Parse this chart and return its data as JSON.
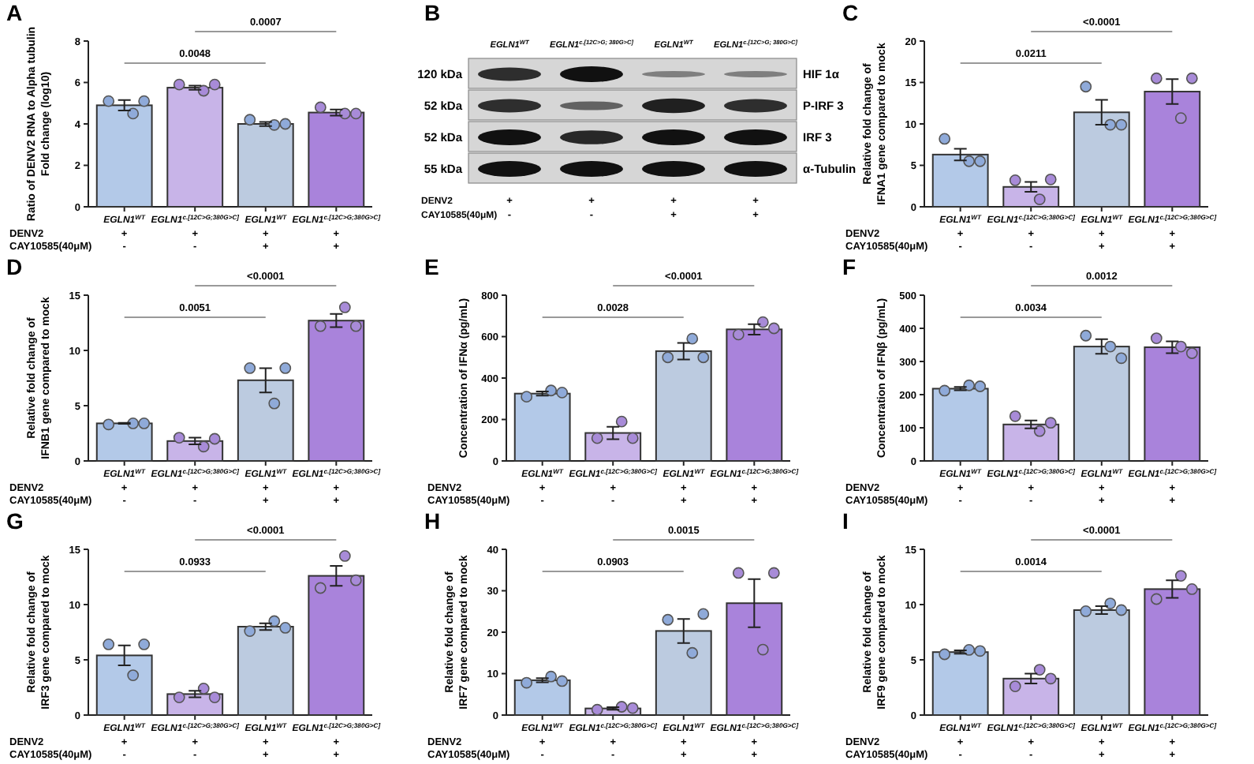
{
  "chart_data": [
    {
      "type": "bar",
      "title": "A",
      "ylabel": "Ratio of DENV2 RNA to Alpha tubulin\nFold change (log10)",
      "categories": [
        "EGLN1$^{WT}$",
        "EGLN1$^{c.[12C>G;380G>C]}$",
        "EGLN1$^{WT}$",
        "EGLN1$^{c.[12C>G;380G>C]}$"
      ],
      "ylim": [
        0,
        8
      ],
      "yticks": [
        0,
        2,
        4,
        6,
        8
      ],
      "series": [
        {
          "type": "bar",
          "colors": [
            "#b3c9e8",
            "#c8b4e8",
            "#bccbe0",
            "#a983db"
          ],
          "values": [
            4.9,
            5.75,
            4.0,
            4.55
          ],
          "errors": [
            0.25,
            0.1,
            0.1,
            0.15
          ]
        },
        {
          "type": "scatter",
          "colors": [
            "#8faad9",
            "#a88bd8",
            "#8faad9",
            "#a88bd8"
          ],
          "values": [
            5.1,
            5.9,
            4.2,
            4.8
          ]
        },
        {
          "type": "scatter",
          "colors": [
            "#8faad9",
            "#a88bd8",
            "#8faad9",
            "#a88bd8"
          ],
          "values": [
            4.5,
            5.6,
            3.95,
            4.5
          ]
        },
        {
          "type": "scatter",
          "colors": [
            "#8faad9",
            "#a88bd8",
            "#8faad9",
            "#a88bd8"
          ],
          "values": [
            5.1,
            5.9,
            4.0,
            4.5
          ]
        }
      ],
      "annotations": [
        "0.0048",
        "0.0007",
        "DENV2",
        "+",
        "+",
        "+",
        "+",
        "CAY10585(40μM)",
        "-",
        "-",
        "+",
        "+"
      ]
    },
    {
      "type": "other",
      "title": "B",
      "categories": [
        "EGLN1$^{WT}$",
        "EGLN1$^{c.[12C>G; 380G>C]}$",
        "EGLN1$^{WT}$",
        "EGLN1$^{c.[12C>G; 380G>C]}$"
      ],
      "annotations": [
        "120 kDa",
        "52 kDa",
        "52 kDa",
        "55 kDa",
        "HIF 1α",
        "P-IRF 3",
        "IRF 3",
        "α-Tubulin",
        "DENV2",
        "+",
        "+",
        "+",
        "+",
        "CAY10585(40μM)",
        "-",
        "-",
        "+",
        "+"
      ]
    },
    {
      "type": "bar",
      "title": "C",
      "ylabel": "Relative fold change of\nIFNA1 gene compared to mock",
      "categories": [
        "EGLN1$^{WT}$",
        "EGLN1$^{c.[12C>G;380G>C]}$",
        "EGLN1$^{WT}$",
        "EGLN1$^{c.[12C>G;380G>C]}$"
      ],
      "ylim": [
        0,
        20
      ],
      "yticks": [
        0,
        5,
        10,
        15,
        20
      ],
      "series": [
        {
          "type": "bar",
          "colors": [
            "#b3c9e8",
            "#c8b4e8",
            "#bccbe0",
            "#a983db"
          ],
          "values": [
            6.3,
            2.4,
            11.4,
            13.9
          ],
          "errors": [
            0.7,
            0.6,
            1.5,
            1.5
          ]
        },
        {
          "type": "scatter",
          "colors": [
            "#8faad9",
            "#a88bd8",
            "#8faad9",
            "#a88bd8"
          ],
          "values": [
            8.2,
            3.2,
            14.5,
            15.5
          ]
        },
        {
          "type": "scatter",
          "colors": [
            "#8faad9",
            "#a88bd8",
            "#8faad9",
            "#a88bd8"
          ],
          "values": [
            5.5,
            0.9,
            9.9,
            10.7
          ]
        },
        {
          "type": "scatter",
          "colors": [
            "#8faad9",
            "#a88bd8",
            "#8faad9",
            "#a88bd8"
          ],
          "values": [
            5.5,
            3.3,
            9.9,
            15.5
          ]
        }
      ],
      "annotations": [
        "0.0211",
        "<0.0001",
        "DENV2",
        "+",
        "+",
        "+",
        "+",
        "CAY10585(40μM)",
        "-",
        "-",
        "+",
        "+"
      ]
    },
    {
      "type": "bar",
      "title": "D",
      "ylabel": "Relative fold change of\nIFNB1 gene compared to mock",
      "categories": [
        "EGLN1$^{WT}$",
        "EGLN1$^{c.[12C>G;380G>C]}$",
        "EGLN1$^{WT}$",
        "EGLN1$^{c.[12C>G;380G>C]}$"
      ],
      "ylim": [
        0,
        15
      ],
      "yticks": [
        0,
        5,
        10,
        15
      ],
      "series": [
        {
          "type": "bar",
          "colors": [
            "#b3c9e8",
            "#c8b4e8",
            "#bccbe0",
            "#a983db"
          ],
          "values": [
            3.4,
            1.8,
            7.3,
            12.7
          ],
          "errors": [
            0.05,
            0.3,
            1.1,
            0.6
          ]
        },
        {
          "type": "scatter",
          "colors": [
            "#8faad9",
            "#a88bd8",
            "#8faad9",
            "#a88bd8"
          ],
          "values": [
            3.3,
            2.1,
            8.4,
            12.2
          ]
        },
        {
          "type": "scatter",
          "colors": [
            "#8faad9",
            "#a88bd8",
            "#8faad9",
            "#a88bd8"
          ],
          "values": [
            3.4,
            1.3,
            5.2,
            13.9
          ]
        },
        {
          "type": "scatter",
          "colors": [
            "#8faad9",
            "#a88bd8",
            "#8faad9",
            "#a88bd8"
          ],
          "values": [
            3.4,
            2.0,
            8.4,
            12.2
          ]
        }
      ],
      "annotations": [
        "0.0051",
        "<0.0001",
        "DENV2",
        "+",
        "+",
        "+",
        "+",
        "CAY10585(40μM)",
        "-",
        "-",
        "+",
        "+"
      ]
    },
    {
      "type": "bar",
      "title": "E",
      "ylabel": "Concentration of IFNα (pg/mL)",
      "categories": [
        "EGLN1$^{WT}$",
        "EGLN1$^{c.[12C>G;380G>C]}$",
        "EGLN1$^{WT}$",
        "EGLN1$^{c.[12C>G;380G>C]}$"
      ],
      "ylim": [
        0,
        800
      ],
      "yticks": [
        0,
        200,
        400,
        600,
        800
      ],
      "series": [
        {
          "type": "bar",
          "colors": [
            "#b3c9e8",
            "#c8b4e8",
            "#bccbe0",
            "#a983db"
          ],
          "values": [
            325,
            135,
            530,
            635
          ],
          "errors": [
            10,
            30,
            40,
            25
          ]
        },
        {
          "type": "scatter",
          "colors": [
            "#8faad9",
            "#a88bd8",
            "#8faad9",
            "#a88bd8"
          ],
          "values": [
            310,
            110,
            500,
            610
          ]
        },
        {
          "type": "scatter",
          "colors": [
            "#8faad9",
            "#a88bd8",
            "#8faad9",
            "#a88bd8"
          ],
          "values": [
            340,
            190,
            590,
            670
          ]
        },
        {
          "type": "scatter",
          "colors": [
            "#8faad9",
            "#a88bd8",
            "#8faad9",
            "#a88bd8"
          ],
          "values": [
            330,
            110,
            500,
            640
          ]
        }
      ],
      "annotations": [
        "0.0028",
        "<0.0001",
        "DENV2",
        "+",
        "+",
        "+",
        "+",
        "CAY10585(40μM)",
        "-",
        "-",
        "+",
        "+"
      ]
    },
    {
      "type": "bar",
      "title": "F",
      "ylabel": "Concentration of IFNβ (pg/mL)",
      "categories": [
        "EGLN1$^{WT}$",
        "EGLN1$^{c.[12C>G;380G>C]}$",
        "EGLN1$^{WT}$",
        "EGLN1$^{c.[12C>G;380G>C]}$"
      ],
      "ylim": [
        0,
        500
      ],
      "yticks": [
        0,
        100,
        200,
        300,
        400,
        500
      ],
      "series": [
        {
          "type": "bar",
          "colors": [
            "#b3c9e8",
            "#c8b4e8",
            "#bccbe0",
            "#a983db"
          ],
          "values": [
            218,
            110,
            345,
            343
          ],
          "errors": [
            5,
            12,
            22,
            18
          ]
        },
        {
          "type": "scatter",
          "colors": [
            "#8faad9",
            "#a88bd8",
            "#8faad9",
            "#a88bd8"
          ],
          "values": [
            212,
            135,
            378,
            370
          ]
        },
        {
          "type": "scatter",
          "colors": [
            "#8faad9",
            "#a88bd8",
            "#8faad9",
            "#a88bd8"
          ],
          "values": [
            228,
            90,
            345,
            345
          ]
        },
        {
          "type": "scatter",
          "colors": [
            "#8faad9",
            "#a88bd8",
            "#8faad9",
            "#a88bd8"
          ],
          "values": [
            225,
            115,
            310,
            325
          ]
        }
      ],
      "annotations": [
        "0.0034",
        "0.0012",
        "DENV2",
        "+",
        "+",
        "+",
        "+",
        "CAY10585(40μM)",
        "-",
        "-",
        "+",
        "+"
      ]
    },
    {
      "type": "bar",
      "title": "G",
      "ylabel": "Relative fold change of\nIRF3 gene compared to mock",
      "categories": [
        "EGLN1$^{WT}$",
        "EGLN1$^{c.[12C>G;380G>C]}$",
        "EGLN1$^{WT}$",
        "EGLN1$^{c.[12C>G;380G>C]}$"
      ],
      "ylim": [
        0,
        15
      ],
      "yticks": [
        0,
        5,
        10,
        15
      ],
      "series": [
        {
          "type": "bar",
          "colors": [
            "#b3c9e8",
            "#c8b4e8",
            "#bccbe0",
            "#a983db"
          ],
          "values": [
            5.4,
            1.9,
            8.0,
            12.6
          ],
          "errors": [
            0.9,
            0.3,
            0.3,
            0.9
          ]
        },
        {
          "type": "scatter",
          "colors": [
            "#8faad9",
            "#a88bd8",
            "#8faad9",
            "#a88bd8"
          ],
          "values": [
            6.4,
            1.6,
            7.6,
            11.5
          ]
        },
        {
          "type": "scatter",
          "colors": [
            "#8faad9",
            "#a88bd8",
            "#8faad9",
            "#a88bd8"
          ],
          "values": [
            3.6,
            2.4,
            8.5,
            14.4
          ]
        },
        {
          "type": "scatter",
          "colors": [
            "#8faad9",
            "#a88bd8",
            "#8faad9",
            "#a88bd8"
          ],
          "values": [
            6.4,
            1.6,
            7.9,
            12.2
          ]
        }
      ],
      "annotations": [
        "0.0933",
        "<0.0001",
        "DENV2",
        "+",
        "+",
        "+",
        "+",
        "CAY10585(40μM)",
        "-",
        "-",
        "+",
        "+"
      ]
    },
    {
      "type": "bar",
      "title": "H",
      "ylabel": "Relative fold change of\nIRF7 gene compared to mock",
      "categories": [
        "EGLN1$^{WT}$",
        "EGLN1$^{c.[12C>G;380G>C]}$",
        "EGLN1$^{WT}$",
        "EGLN1$^{c.[12C>G;380G>C]}$"
      ],
      "ylim": [
        0,
        40
      ],
      "yticks": [
        0,
        10,
        20,
        30,
        40
      ],
      "series": [
        {
          "type": "bar",
          "colors": [
            "#b3c9e8",
            "#c8b4e8",
            "#bccbe0",
            "#a983db"
          ],
          "values": [
            8.4,
            1.6,
            20.3,
            27.0
          ],
          "errors": [
            0.5,
            0.3,
            2.9,
            5.8
          ]
        },
        {
          "type": "scatter",
          "colors": [
            "#8faad9",
            "#a88bd8",
            "#8faad9",
            "#a88bd8"
          ],
          "values": [
            7.8,
            1.3,
            23.0,
            34.3
          ]
        },
        {
          "type": "scatter",
          "colors": [
            "#8faad9",
            "#a88bd8",
            "#8faad9",
            "#a88bd8"
          ],
          "values": [
            9.3,
            2.0,
            15.0,
            15.8
          ]
        },
        {
          "type": "scatter",
          "colors": [
            "#8faad9",
            "#a88bd8",
            "#8faad9",
            "#a88bd8"
          ],
          "values": [
            8.2,
            1.7,
            24.4,
            34.3
          ]
        }
      ],
      "annotations": [
        "0.0903",
        "0.0015",
        "DENV2",
        "+",
        "+",
        "+",
        "+",
        "CAY10585(40μM)",
        "-",
        "-",
        "+",
        "+"
      ]
    },
    {
      "type": "bar",
      "title": "I",
      "ylabel": "Relative fold change of\nIRF9 gene compared to mock",
      "categories": [
        "EGLN1$^{WT}$",
        "EGLN1$^{c.[12C>G;380G>C]}$",
        "EGLN1$^{WT}$",
        "EGLN1$^{c.[12C>G;380G>C]}$"
      ],
      "ylim": [
        0,
        15
      ],
      "yticks": [
        0,
        5,
        10,
        15
      ],
      "series": [
        {
          "type": "bar",
          "colors": [
            "#b3c9e8",
            "#c8b4e8",
            "#bccbe0",
            "#a983db"
          ],
          "values": [
            5.7,
            3.3,
            9.5,
            11.4
          ],
          "errors": [
            0.15,
            0.45,
            0.35,
            0.8
          ]
        },
        {
          "type": "scatter",
          "colors": [
            "#8faad9",
            "#a88bd8",
            "#8faad9",
            "#a88bd8"
          ],
          "values": [
            5.5,
            2.6,
            9.4,
            10.5
          ]
        },
        {
          "type": "scatter",
          "colors": [
            "#8faad9",
            "#a88bd8",
            "#8faad9",
            "#a88bd8"
          ],
          "values": [
            5.9,
            4.1,
            10.1,
            12.6
          ]
        },
        {
          "type": "scatter",
          "colors": [
            "#8faad9",
            "#a88bd8",
            "#8faad9",
            "#a88bd8"
          ],
          "values": [
            5.8,
            3.3,
            9.5,
            11.4
          ]
        }
      ],
      "annotations": [
        "0.0014",
        "<0.0001",
        "DENV2",
        "+",
        "+",
        "+",
        "+",
        "CAY10585(40μM)",
        "-",
        "-",
        "+",
        "+"
      ]
    }
  ]
}
